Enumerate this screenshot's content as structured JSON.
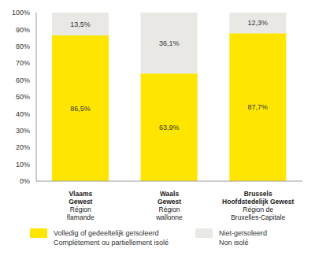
{
  "chart_data": {
    "type": "bar",
    "categories": [
      "Vlaams\nGewest\nRégion\nflamande",
      "Waals\nGewest\nRégion\nwallonne",
      "Brussels\nHoofdstedelijk Gewest\nRégion de\nBruxelles-Capitale"
    ],
    "series": [
      {
        "name": "Volledig of gedeeltelijk geïsoleerd\nComplètement ou partiellement isolé",
        "color": "#ffe600",
        "values": [
          86.5,
          63.9,
          87.7
        ],
        "value_labels": [
          "86,5%",
          "63,9%",
          "87,7%"
        ]
      },
      {
        "name": "Niet-geïsoleerd\nNon isolé",
        "color": "#e9e8e4",
        "values": [
          13.5,
          36.1,
          12.3
        ],
        "value_labels": [
          "13,5%",
          "36,1%",
          "12,3%"
        ]
      }
    ],
    "ylim": [
      0,
      100
    ],
    "yticks": [
      {
        "value": 0,
        "label": "0%"
      },
      {
        "value": 10,
        "label": "10%"
      },
      {
        "value": 20,
        "label": "20%"
      },
      {
        "value": 30,
        "label": "30%"
      },
      {
        "value": 40,
        "label": "40%"
      },
      {
        "value": 50,
        "label": "50%"
      },
      {
        "value": 60,
        "label": "60%"
      },
      {
        "value": 70,
        "label": "70%"
      },
      {
        "value": 80,
        "label": "80%"
      },
      {
        "value": 90,
        "label": "90%"
      },
      {
        "value": 100,
        "label": "100%"
      }
    ],
    "stacked": true,
    "data_labels": true,
    "grid": false,
    "legend": "bottom"
  }
}
